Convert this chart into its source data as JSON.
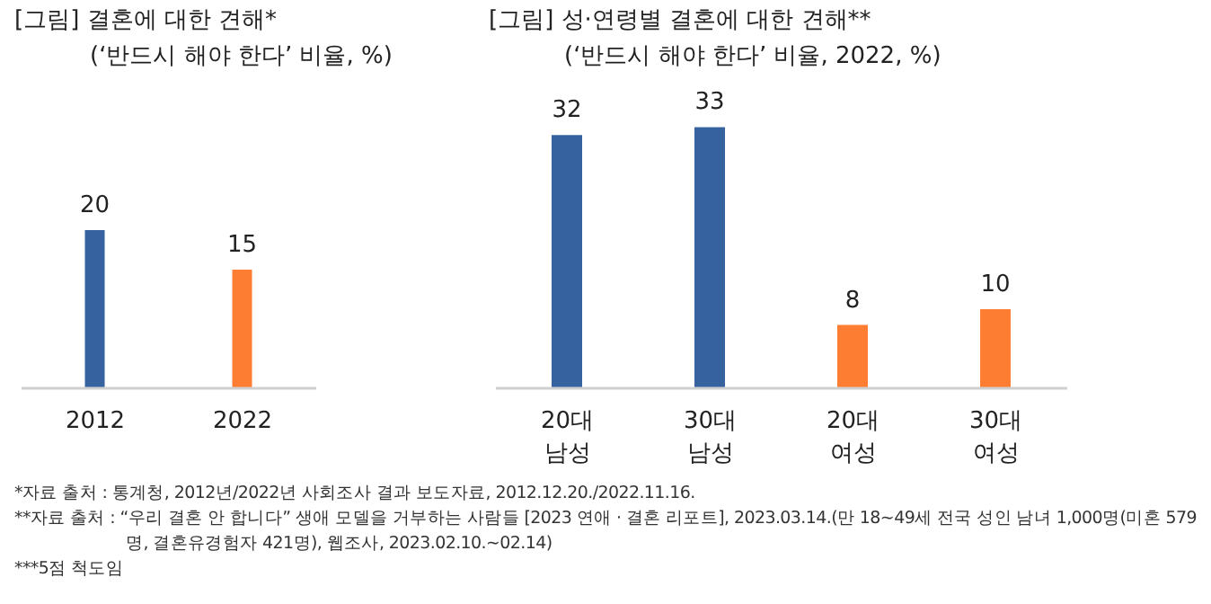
{
  "chart_data": [
    {
      "type": "bar",
      "title": "[그림] 결혼에 대한 견해*",
      "subtitle": "(‘반드시 해야 한다’ 비율, %)",
      "categories": [
        "2012",
        "2022"
      ],
      "values": [
        20,
        15
      ],
      "colors": [
        "#3762a0",
        "#fd7d33"
      ],
      "data_labels": true,
      "grid": false,
      "legend": false,
      "annotations": [
        "*자료 출처 : 통계청, 2012년/2022년 사회조사 결과 보도자료, 2012.12.20./2022.11.16."
      ]
    },
    {
      "type": "bar",
      "title": "[그림] 성·연령별 결혼에 대한 견해**",
      "subtitle": "(‘반드시 해야 한다’ 비율, 2022, %)",
      "categories": [
        "20대\n남성",
        "30대\n남성",
        "20대\n여성",
        "30대\n여성"
      ],
      "values": [
        32,
        33,
        8,
        10
      ],
      "colors": [
        "#3762a0",
        "#3762a0",
        "#fd7d33",
        "#fd7d33"
      ],
      "data_labels": true,
      "grid": false,
      "legend": false,
      "annotations": [
        "**자료 출처 : “우리 결혼 안 합니다” 생애 모델을 거부하는 사람들 [2023 연애 · 결혼 리포트], 2023.03.14.(만 18~49세 전국 성인 남녀 1,000명(미혼 579명, 결혼유경험자 421명), 웹조사, 2023.02.10.~02.14)",
        "***5점 척도임"
      ]
    }
  ]
}
